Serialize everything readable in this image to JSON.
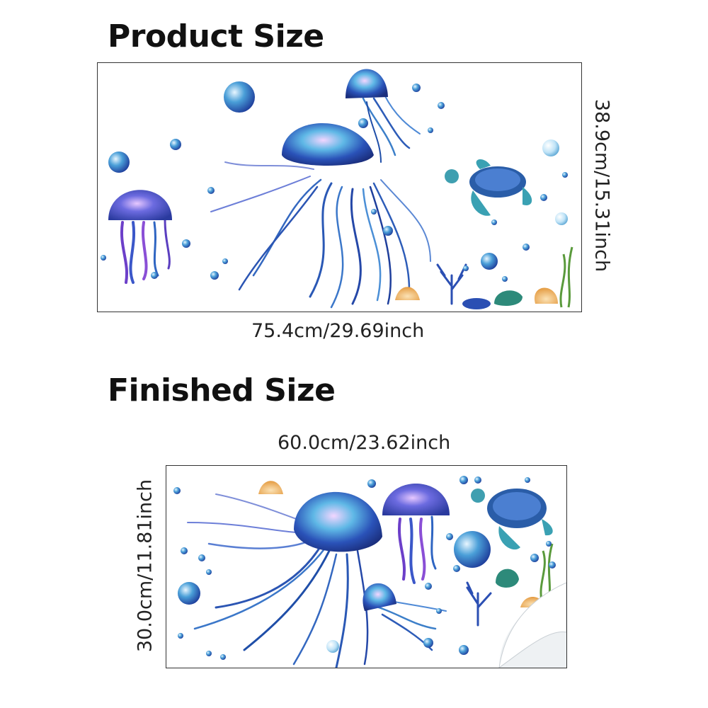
{
  "sections": {
    "product": {
      "title": "Product Size",
      "width_label": "75.4cm/29.69inch",
      "height_label": "38.9cm/15.31inch"
    },
    "finished": {
      "title": "Finished Size",
      "width_label": "60.0cm/23.62inch",
      "height_label": "30.0cm/11.81inch"
    }
  },
  "illustration": {
    "subject": "ocean-jellyfish-wall-decal",
    "colors": {
      "deep_blue": "#1d3f9e",
      "cyan": "#3fa9d8",
      "violet": "#7b4fc9",
      "turtle_green": "#2f8f9a",
      "shell_orange": "#e9a64a",
      "seaweed_green": "#5a9a3c"
    }
  }
}
